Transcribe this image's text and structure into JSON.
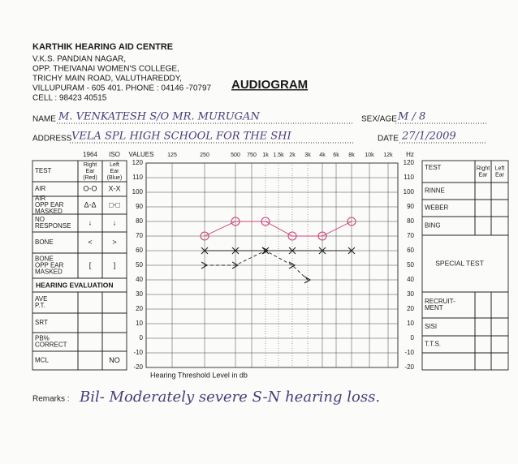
{
  "header": {
    "clinic": "KARTHIK HEARING AID CENTRE",
    "address_lines": [
      "V.K.S. PANDIAN NAGAR,",
      "OPP. THEIVANAI WOMEN'S COLLEGE,",
      "TRICHY MAIN ROAD, VALUTHAREDDY,",
      "VILLUPURAM - 605 401. PHONE : 04146 -70797",
      "CELL : 98423 40515"
    ],
    "title": "AUDIOGRAM"
  },
  "patient": {
    "name_label": "NAME",
    "name": "M. VENKATESH S/O MR. MURUGAN",
    "address_label": "ADDRESS",
    "address": "VELA SPL HIGH SCHOOL FOR THE SHI",
    "sex_age_label": "SEX/AGE",
    "sex_age": "M / 8",
    "date_label": "DATE",
    "date": "27/1/2009"
  },
  "left_table": {
    "standard": [
      "1964",
      "ISO"
    ],
    "header": {
      "label": "TEST",
      "right": [
        "Right",
        "Ear",
        "(Red)"
      ],
      "left": [
        "Left",
        "Ear",
        "(Blue)"
      ]
    },
    "rows": [
      {
        "label": [
          "AIR"
        ],
        "right": "O-O",
        "left": "X-X"
      },
      {
        "label": [
          "AIR",
          "OPP EAR",
          "MASKED"
        ],
        "right": "Δ-Δ",
        "left": "□-□"
      },
      {
        "label": [
          "NO",
          "RESPONSE"
        ],
        "right": "↓",
        "left": "↓"
      },
      {
        "label": [
          "BONE"
        ],
        "right": "<",
        "left": ">"
      },
      {
        "label": [
          "BONE",
          "OPP EAR",
          "MASKED"
        ],
        "right": "[",
        "left": "]"
      }
    ],
    "section": "HEARING EVALUATION",
    "rows2": [
      {
        "label": [
          "AVE",
          "P.T."
        ]
      },
      {
        "label": [
          "SRT"
        ]
      },
      {
        "label": [
          "PB%",
          "CORRECT"
        ]
      },
      {
        "label": [
          "MCL"
        ],
        "left": "NO"
      }
    ]
  },
  "audiogram": {
    "y_title": "VALUES",
    "hz_label": "Hz",
    "x_title": "Hearing Threshold Level in db",
    "frequencies": [
      "125",
      "250",
      "500",
      "750",
      "1k",
      "1.5k",
      "2k",
      "3k",
      "4k",
      "6k",
      "8k",
      "10k",
      "12k"
    ],
    "ylim": [
      -20,
      120
    ],
    "yticks": [
      -20,
      -10,
      0,
      10,
      20,
      30,
      40,
      50,
      60,
      70,
      80,
      90,
      100,
      110,
      120
    ],
    "series": [
      {
        "color": "#d0407a",
        "marker": "circle",
        "line": "solid",
        "x": [
          "250",
          "500",
          "1k",
          "2k",
          "4k",
          "8k"
        ],
        "values": [
          70,
          80,
          80,
          70,
          70,
          80
        ]
      },
      {
        "color": "#222222",
        "marker": "x",
        "line": "solid",
        "x": [
          "250",
          "500",
          "1k",
          "2k",
          "4k",
          "8k"
        ],
        "values": [
          60,
          60,
          60,
          60,
          60,
          60
        ]
      },
      {
        "color": "#222222",
        "marker": "gt",
        "line": "dashed",
        "x": [
          "250",
          "500",
          "1k",
          "2k",
          "3k"
        ],
        "values": [
          50,
          50,
          60,
          50,
          40
        ]
      }
    ]
  },
  "right_table": {
    "header": {
      "label": "TEST",
      "right": [
        "Right",
        "Ear"
      ],
      "left": [
        "Left",
        "Ear"
      ]
    },
    "rows": [
      [
        "RINNE"
      ],
      [
        "WEBER"
      ],
      [
        "BING"
      ]
    ],
    "section": "SPECIAL TEST",
    "rows2": [
      [
        "RECRUIT-",
        "MENT"
      ],
      [
        "SISI"
      ],
      [
        "T.T.S."
      ]
    ]
  },
  "remarks": {
    "label": "Remarks :",
    "text": "Bil- Moderately severe S-N hearing loss."
  }
}
